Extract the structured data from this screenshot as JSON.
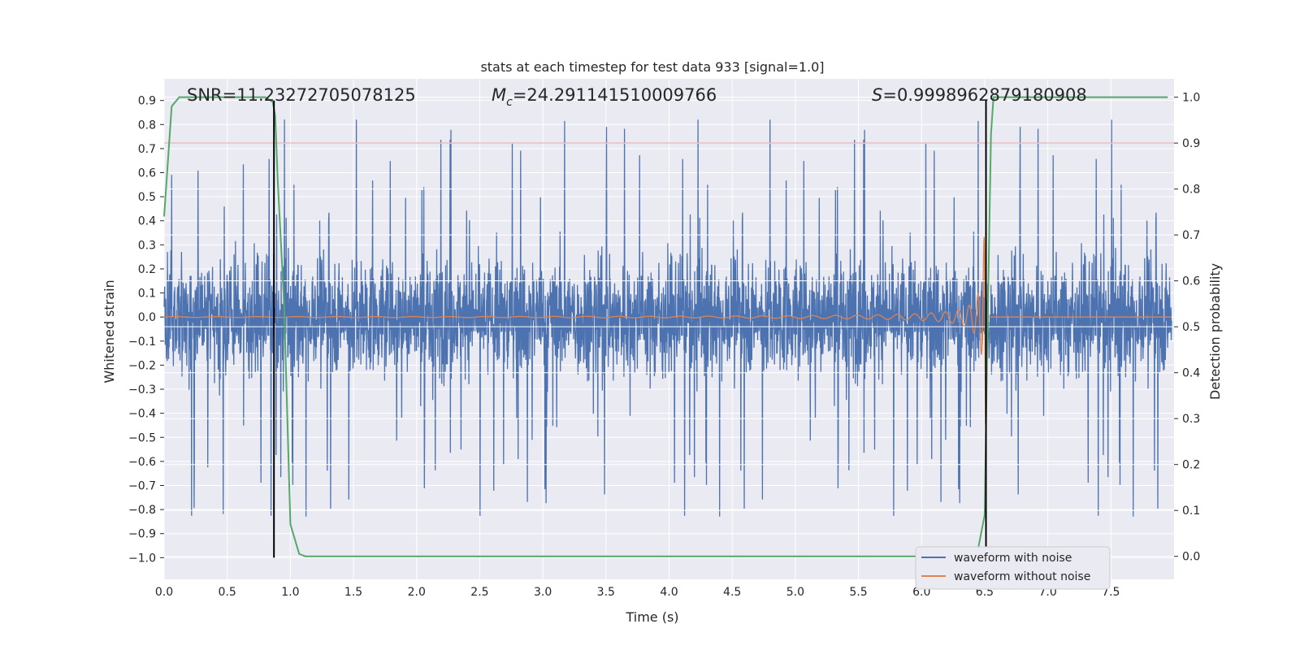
{
  "chart_data": {
    "type": "line",
    "title": "stats at each timestep for test data 933 [signal=1.0]",
    "xlabel": "Time (s)",
    "ylabel": "Whitened strain",
    "y2label": "Detection probability",
    "xlim": [
      0.0,
      8.0
    ],
    "ylim": [
      -1.09,
      0.99
    ],
    "y2lim": [
      -0.05,
      1.04
    ],
    "xticks": [
      0.0,
      0.5,
      1.0,
      1.5,
      2.0,
      2.5,
      3.0,
      3.5,
      4.0,
      4.5,
      5.0,
      5.5,
      6.0,
      6.5,
      7.0,
      7.5
    ],
    "xtick_labels": [
      "0.0",
      "0.5",
      "1.0",
      "1.5",
      "2.0",
      "2.5",
      "3.0",
      "3.5",
      "4.0",
      "4.5",
      "5.0",
      "5.5",
      "6.0",
      "6.5",
      "7.0",
      "7.5"
    ],
    "yticks": [
      0.9,
      0.8,
      0.7,
      0.6,
      0.5,
      0.4,
      0.3,
      0.2,
      0.1,
      0.0,
      -0.1,
      -0.2,
      -0.3,
      -0.4,
      -0.5,
      -0.6,
      -0.7,
      -0.8,
      -0.9,
      -1.0
    ],
    "ytick_labels": [
      "0.9",
      "0.8",
      "0.7",
      "0.6",
      "0.5",
      "0.4",
      "0.3",
      "0.2",
      "0.1",
      "0.0",
      "−0.1",
      "−0.2",
      "−0.3",
      "−0.4",
      "−0.5",
      "−0.6",
      "−0.7",
      "−0.8",
      "−0.9",
      "−1.0"
    ],
    "y2ticks": [
      1.0,
      0.9,
      0.8,
      0.7,
      0.6,
      0.5,
      0.4,
      0.3,
      0.2,
      0.1,
      0.0
    ],
    "y2tick_labels": [
      "1.0",
      "0.9",
      "0.8",
      "0.7",
      "0.6",
      "0.5",
      "0.4",
      "0.3",
      "0.2",
      "0.1",
      "0.0"
    ],
    "annotations": {
      "snr": "SNR=11.23272705078125",
      "mc_symbol": "M",
      "mc_sub": "c",
      "mc_value": "=24.291141510009766",
      "s_symbol": "S",
      "s_value": "=0.9998962879180908"
    },
    "legend": {
      "placement": "lower-right",
      "entries": [
        "waveform with noise",
        "waveform without noise"
      ]
    },
    "colors": {
      "noise": "#4c72b0",
      "signal": "#dd8452",
      "probability": "#55a868",
      "threshold": "#c44e52",
      "marker": "#000000",
      "background": "#eaeaf2",
      "grid": "#ffffff"
    },
    "threshold_probability": 0.9,
    "vertical_markers_time": [
      0.87,
      6.51
    ],
    "series": [
      {
        "name": "waveform with noise",
        "description": "whitened strain with noise; approx envelope",
        "typical_range": [
          -0.4,
          0.4
        ],
        "peak_max": 0.88,
        "peak_min": -0.87
      },
      {
        "name": "waveform without noise",
        "description": "chirp signal growing in amplitude, merger near t=6.51 s",
        "start_time": 0.0,
        "merger_time": 6.51,
        "peak_amplitude": 0.45
      },
      {
        "name": "detection probability",
        "axis": "right",
        "x": [
          0.0,
          0.06,
          0.12,
          0.2,
          0.4,
          0.6,
          0.8,
          0.86,
          0.88,
          0.9,
          0.95,
          1.0,
          1.07,
          1.12,
          1.3,
          2.0,
          3.0,
          4.0,
          5.0,
          6.0,
          6.3,
          6.45,
          6.5,
          6.52,
          6.55,
          6.57,
          6.6,
          7.0,
          7.5,
          7.95
        ],
        "y": [
          0.74,
          0.98,
          1.0,
          1.0,
          1.0,
          1.0,
          1.0,
          0.99,
          0.96,
          0.82,
          0.55,
          0.07,
          0.005,
          0.0,
          0.0,
          0.0,
          0.0,
          0.0,
          0.0,
          0.0,
          0.0,
          0.02,
          0.09,
          0.45,
          0.92,
          1.0,
          1.0,
          1.0,
          1.0,
          1.0
        ]
      }
    ]
  }
}
